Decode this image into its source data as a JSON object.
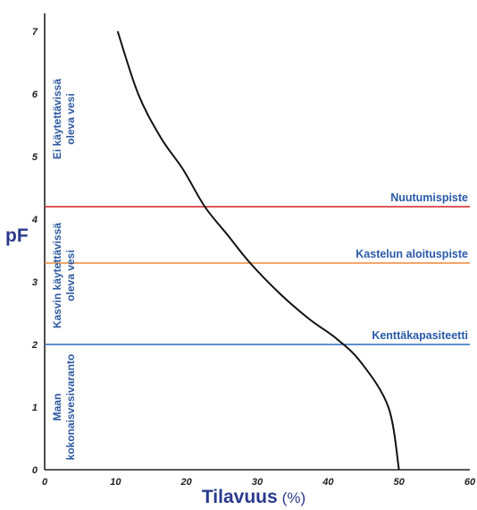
{
  "chart_data": {
    "type": "line",
    "title": "",
    "xlabel": "Tilavuus",
    "xunit": "(%)",
    "ylabel": "pF",
    "xlim": [
      0,
      60
    ],
    "ylim": [
      0,
      7
    ],
    "x_ticks": [
      "0",
      "10",
      "20",
      "30",
      "40",
      "50",
      "60"
    ],
    "y_ticks": [
      "0",
      "1",
      "2",
      "3",
      "4",
      "5",
      "6",
      "7"
    ],
    "grid": false,
    "series": [
      {
        "color": "#111111",
        "points": [
          {
            "x": 10.3,
            "y": 7.0
          },
          {
            "x": 13.2,
            "y": 6.0
          },
          {
            "x": 16.4,
            "y": 5.3
          },
          {
            "x": 19.5,
            "y": 4.8
          },
          {
            "x": 22.6,
            "y": 4.2
          },
          {
            "x": 25.8,
            "y": 3.75
          },
          {
            "x": 29.0,
            "y": 3.3
          },
          {
            "x": 33.3,
            "y": 2.8
          },
          {
            "x": 37.4,
            "y": 2.4
          },
          {
            "x": 41.1,
            "y": 2.1
          },
          {
            "x": 44.6,
            "y": 1.72
          },
          {
            "x": 48.5,
            "y": 1.0
          },
          {
            "x": 50.0,
            "y": 0.0
          }
        ]
      }
    ],
    "reference_lines": [
      {
        "y": 4.2,
        "label": "Nuutumispiste",
        "color": "#cf2027"
      },
      {
        "y": 3.3,
        "label": "Kastelun aloituspiste",
        "color": "#e98b3a"
      },
      {
        "y": 2.0,
        "label": "Kenttäkapasiteetti",
        "color": "#2a6bbf"
      }
    ],
    "zones": [
      {
        "lines": [
          "Ei käytettävissä",
          "oleva vesi"
        ],
        "y_range": [
          4.2,
          7.0
        ]
      },
      {
        "lines": [
          "Kasvin käytettävissä",
          "oleva vesi"
        ],
        "y_range": [
          2.0,
          4.2
        ]
      },
      {
        "lines": [
          "Maan",
          "kokonaisvesivaranto"
        ],
        "y_range": [
          0.0,
          2.0
        ]
      }
    ]
  }
}
